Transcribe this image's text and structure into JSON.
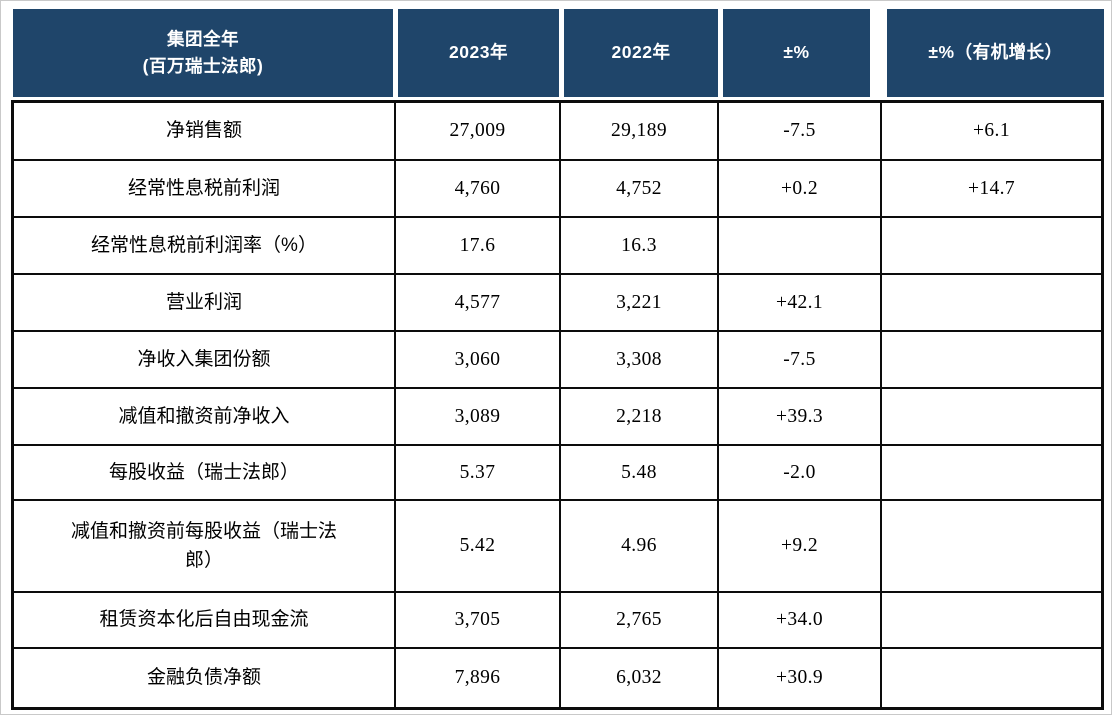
{
  "colors": {
    "header_background": "#1F456A",
    "header_text": "#FFFFFF",
    "grid_border": "#0C0C0C",
    "body_text": "#000000",
    "page_frame": "#C9C9C9"
  },
  "table": {
    "header": {
      "metric_line1": "集团全年",
      "metric_line2": "(百万瑞士法郎)",
      "col_2023": "2023年",
      "col_2022": "2022年",
      "col_change": "±%",
      "col_organic": "±%（有机增长）"
    },
    "rows": [
      {
        "label": "净销售额",
        "y2023": "27,009",
        "y2022": "29,189",
        "change": "-7.5",
        "organic": "+6.1"
      },
      {
        "label": "经常性息税前利润",
        "y2023": "4,760",
        "y2022": "4,752",
        "change": "+0.2",
        "organic": "+14.7"
      },
      {
        "label": "经常性息税前利润率（%）",
        "y2023": "17.6",
        "y2022": "16.3",
        "change": "",
        "organic": ""
      },
      {
        "label": "营业利润",
        "y2023": "4,577",
        "y2022": "3,221",
        "change": "+42.1",
        "organic": ""
      },
      {
        "label": "净收入集团份额",
        "y2023": "3,060",
        "y2022": "3,308",
        "change": "-7.5",
        "organic": ""
      },
      {
        "label": "减值和撤资前净收入",
        "y2023": "3,089",
        "y2022": "2,218",
        "change": "+39.3",
        "organic": ""
      },
      {
        "label": "每股收益（瑞士法郎）",
        "y2023": "5.37",
        "y2022": "5.48",
        "change": "-2.0",
        "organic": ""
      },
      {
        "label": "减值和撤资前每股收益（瑞士法郎）",
        "y2023": "5.42",
        "y2022": "4.96",
        "change": "+9.2",
        "organic": ""
      },
      {
        "label": "租赁资本化后自由现金流",
        "y2023": "3,705",
        "y2022": "2,765",
        "change": "+34.0",
        "organic": ""
      },
      {
        "label": "金融负债净额",
        "y2023": "7,896",
        "y2022": "6,032",
        "change": "+30.9",
        "organic": ""
      }
    ]
  }
}
